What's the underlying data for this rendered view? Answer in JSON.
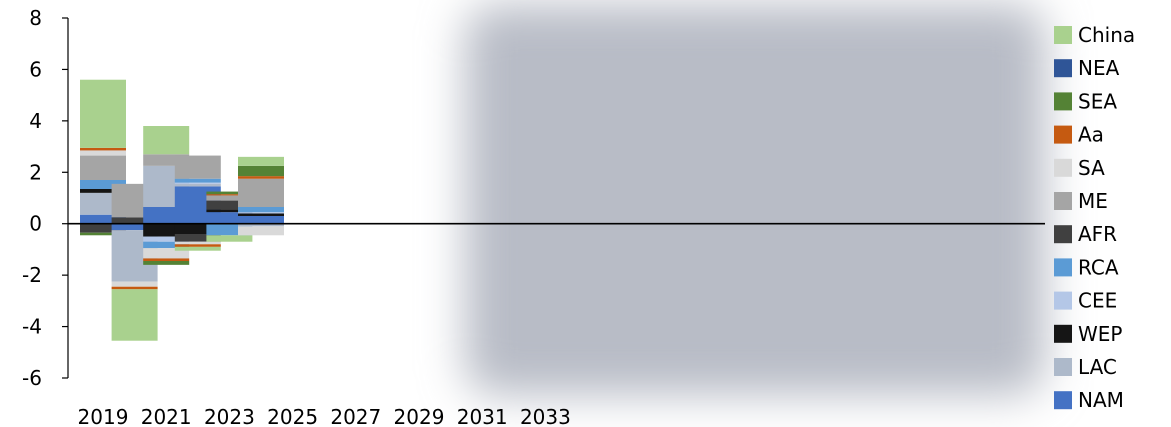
{
  "chart_data": {
    "type": "bar",
    "stacked": true,
    "categories": [
      "2019",
      "2020",
      "2021",
      "2022",
      "2023",
      "2024"
    ],
    "x_ticks": [
      "2019",
      "2021",
      "2023",
      "2025",
      "2027",
      "2029",
      "2031",
      "2033"
    ],
    "y_ticks": [
      "8",
      "6",
      "4",
      "2",
      "0",
      "-2",
      "-4",
      "-6"
    ],
    "ylim": [
      -6,
      8
    ],
    "legend_position": "right",
    "series": [
      {
        "name": "NAM",
        "color": "#4472c4",
        "values": [
          0.35,
          -0.25,
          0.65,
          1.45,
          0.45,
          0.3
        ]
      },
      {
        "name": "LAC",
        "color": "#adb9ca",
        "values": [
          0.85,
          -2.0,
          1.6,
          0.1,
          0.0,
          -0.1
        ]
      },
      {
        "name": "WEP",
        "color": "#151515",
        "values": [
          0.15,
          0.0,
          -0.5,
          -0.4,
          0.1,
          0.1
        ]
      },
      {
        "name": "CEE",
        "color": "#b4c7e7",
        "values": [
          0.0,
          0.0,
          -0.2,
          0.05,
          0.0,
          0.05
        ]
      },
      {
        "name": "RCA",
        "color": "#5b9bd5",
        "values": [
          0.35,
          0.0,
          -0.25,
          0.15,
          -0.45,
          0.2
        ]
      },
      {
        "name": "AFR",
        "color": "#404040",
        "values": [
          -0.35,
          0.25,
          0.0,
          -0.3,
          0.35,
          0.0
        ]
      },
      {
        "name": "ME",
        "color": "#a5a5a5",
        "values": [
          0.95,
          1.3,
          0.45,
          0.9,
          0.2,
          1.1
        ]
      },
      {
        "name": "SA",
        "color": "#d9d9d9",
        "values": [
          0.2,
          -0.2,
          -0.4,
          -0.1,
          0.0,
          -0.35
        ]
      },
      {
        "name": "Aa",
        "color": "#c55a11",
        "values": [
          0.1,
          -0.1,
          -0.1,
          -0.1,
          0.05,
          0.1
        ]
      },
      {
        "name": "SEA",
        "color": "#548235",
        "values": [
          -0.1,
          0.0,
          -0.15,
          0.0,
          0.1,
          0.4
        ]
      },
      {
        "name": "NEA",
        "color": "#2f5597",
        "values": [
          0.0,
          0.0,
          0.0,
          0.0,
          0.0,
          0.0
        ]
      },
      {
        "name": "China",
        "color": "#a9d18e",
        "values": [
          2.65,
          -2.0,
          1.1,
          -0.15,
          -0.25,
          0.35
        ]
      }
    ]
  }
}
